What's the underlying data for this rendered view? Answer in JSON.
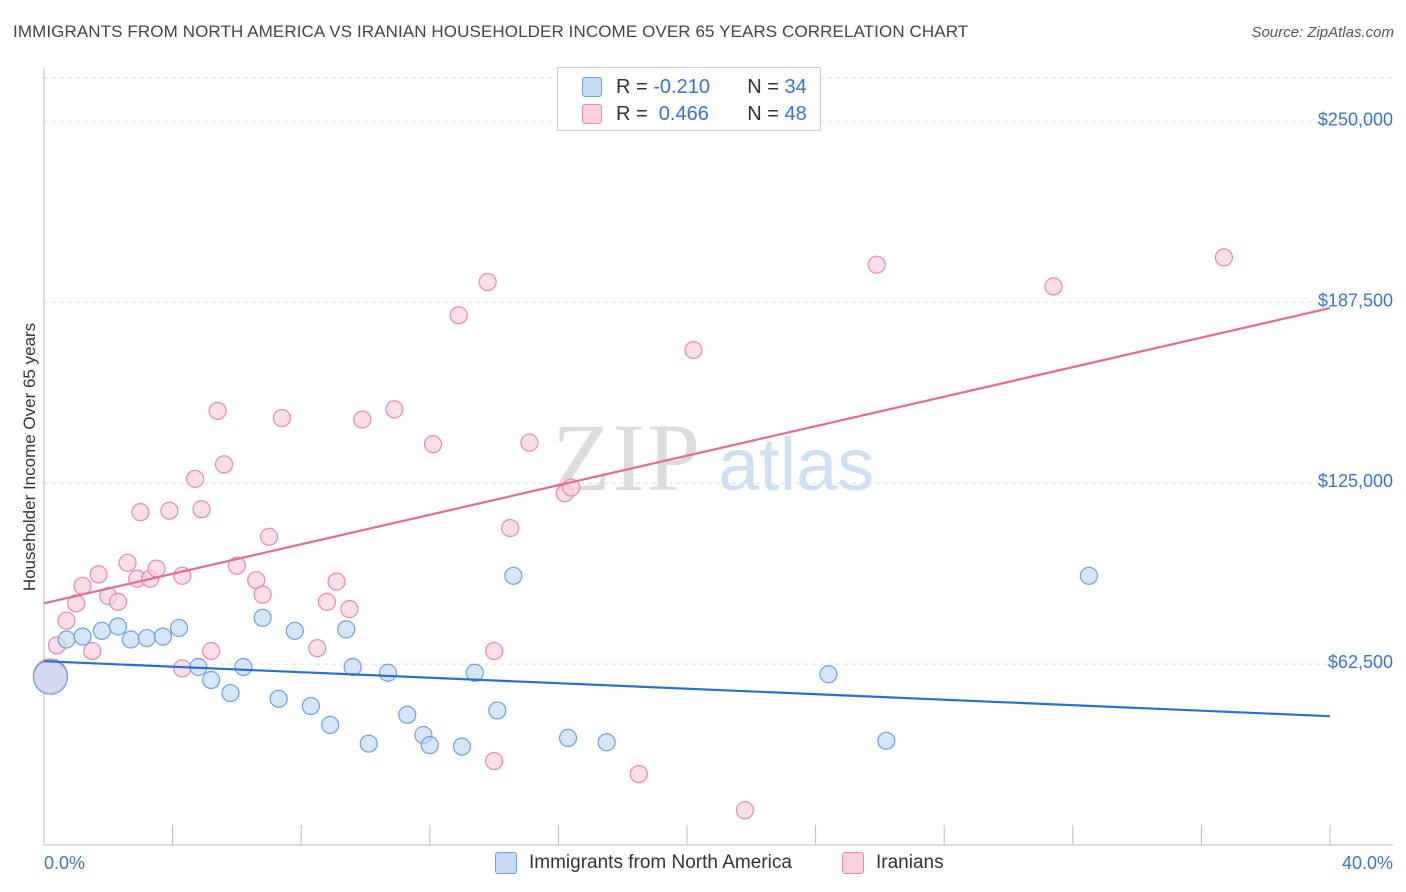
{
  "title": "IMMIGRANTS FROM NORTH AMERICA VS IRANIAN HOUSEHOLDER INCOME OVER 65 YEARS CORRELATION CHART",
  "source": "Source: ZipAtlas.com",
  "watermark": {
    "zip": "ZIP",
    "atlas": "atlas"
  },
  "legend": {
    "rows": [
      {
        "r_label": "R = ",
        "r_value": "-0.210",
        "n_label": "N = ",
        "n_value": "34",
        "color": "#6fa0dc",
        "fill": "#c5daf5"
      },
      {
        "r_label": "R = ",
        "r_value": " 0.466",
        "n_label": "N = ",
        "n_value": "48",
        "color": "#e68aa8",
        "fill": "#f9d0dd"
      }
    ]
  },
  "bottom_legend": [
    "Immigrants from North America",
    "Iranians"
  ],
  "chart_data": {
    "type": "scatter",
    "ylabel": "Householder Income Over 65 years",
    "xlim": [
      0,
      40
    ],
    "ylim": [
      0,
      265000
    ],
    "x_tick_labels": [
      "0.0%",
      "40.0%"
    ],
    "y_ticks": [
      62500,
      125000,
      187500,
      250000
    ],
    "y_tick_labels": [
      "$62,500",
      "$125,000",
      "$187,500",
      "$250,000"
    ],
    "grid": true,
    "series": [
      {
        "name": "Immigrants from North America",
        "color": "#6fa0dc",
        "fill": "#c5daf5",
        "trend": {
          "x": [
            0,
            40
          ],
          "y": [
            63500,
            44500
          ],
          "color": "#2a6fcf"
        },
        "points": [
          [
            0.2,
            58000,
            "big"
          ],
          [
            0.7,
            71000
          ],
          [
            1.2,
            72000
          ],
          [
            1.8,
            74000
          ],
          [
            2.3,
            75500
          ],
          [
            2.7,
            71000
          ],
          [
            3.2,
            71500
          ],
          [
            3.7,
            72000
          ],
          [
            4.2,
            75000
          ],
          [
            4.8,
            61500
          ],
          [
            5.2,
            57000
          ],
          [
            5.8,
            52500
          ],
          [
            6.2,
            61500
          ],
          [
            6.8,
            78500
          ],
          [
            7.3,
            50500
          ],
          [
            7.8,
            74000
          ],
          [
            8.3,
            48000
          ],
          [
            8.9,
            41500
          ],
          [
            9.4,
            74500
          ],
          [
            9.6,
            61500
          ],
          [
            10.1,
            35000
          ],
          [
            10.7,
            59500
          ],
          [
            11.3,
            45000
          ],
          [
            11.8,
            38000
          ],
          [
            12.0,
            34500
          ],
          [
            13.0,
            34000
          ],
          [
            13.4,
            59500
          ],
          [
            14.1,
            46500
          ],
          [
            14.6,
            93000
          ],
          [
            16.3,
            37000
          ],
          [
            17.5,
            35500
          ],
          [
            24.4,
            59000
          ],
          [
            26.2,
            36000
          ],
          [
            32.5,
            93000
          ]
        ]
      },
      {
        "name": "Iranians",
        "color": "#e68aa8",
        "fill": "#f9d0dd",
        "trend": {
          "x": [
            0,
            40
          ],
          "y": [
            83500,
            185500
          ],
          "color": "#e06b93"
        },
        "points": [
          [
            0.2,
            58500,
            "big"
          ],
          [
            0.4,
            69000
          ],
          [
            0.7,
            77500
          ],
          [
            1.0,
            83500
          ],
          [
            1.2,
            89500
          ],
          [
            1.5,
            67000
          ],
          [
            1.7,
            93500
          ],
          [
            2.0,
            86000
          ],
          [
            2.3,
            84000
          ],
          [
            2.6,
            97500
          ],
          [
            2.9,
            92000
          ],
          [
            3.0,
            115000
          ],
          [
            3.3,
            92000
          ],
          [
            3.5,
            95500
          ],
          [
            3.9,
            115500
          ],
          [
            4.3,
            61000
          ],
          [
            4.3,
            93000
          ],
          [
            4.7,
            126500
          ],
          [
            4.9,
            116000
          ],
          [
            5.2,
            67000
          ],
          [
            5.4,
            150000
          ],
          [
            5.6,
            131500
          ],
          [
            6.0,
            96500
          ],
          [
            6.6,
            91500
          ],
          [
            6.8,
            86500
          ],
          [
            7.0,
            106500
          ],
          [
            7.4,
            147500
          ],
          [
            8.5,
            68000
          ],
          [
            8.8,
            84000
          ],
          [
            9.1,
            91000
          ],
          [
            9.5,
            81500
          ],
          [
            9.9,
            147000
          ],
          [
            10.9,
            150500
          ],
          [
            12.1,
            138500
          ],
          [
            12.9,
            183000
          ],
          [
            14.0,
            67000
          ],
          [
            14.0,
            29000
          ],
          [
            13.8,
            194500
          ],
          [
            14.5,
            109500
          ],
          [
            15.1,
            139000
          ],
          [
            16.2,
            121500
          ],
          [
            16.4,
            123500
          ],
          [
            18.5,
            24500
          ],
          [
            20.2,
            171000
          ],
          [
            21.8,
            12000
          ],
          [
            25.9,
            200500
          ],
          [
            31.4,
            193000
          ],
          [
            36.7,
            203000
          ]
        ]
      }
    ]
  }
}
